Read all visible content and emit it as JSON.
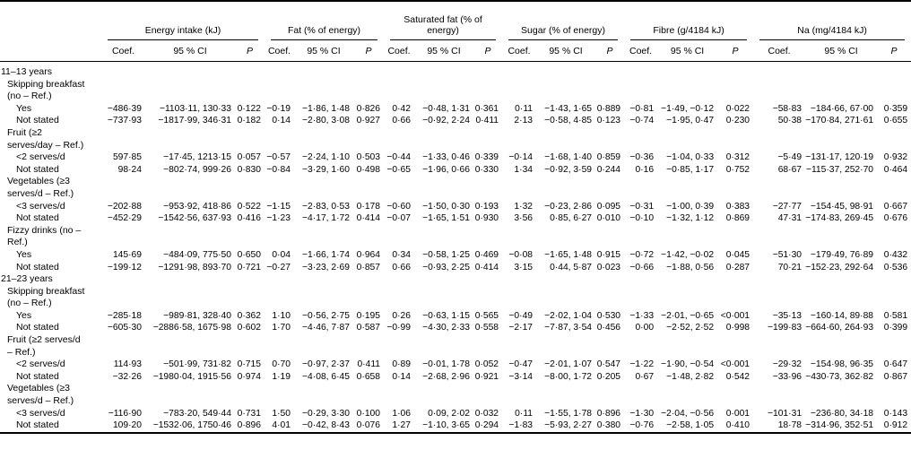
{
  "table": {
    "col_groups": [
      {
        "label": "Energy intake (kJ)"
      },
      {
        "label": "Fat (% of energy)"
      },
      {
        "label": "Saturated fat (% of energy)"
      },
      {
        "label": "Sugar (% of energy)"
      },
      {
        "label": "Fibre (g/4184 kJ)"
      },
      {
        "label": "Na (mg/4184 kJ)"
      }
    ],
    "sub_headers": {
      "coef": "Coef.",
      "ci": "95 % CI",
      "p": "P"
    },
    "rows": [
      {
        "label": "11–13 years",
        "indent": 0,
        "cells": null
      },
      {
        "label": "Skipping breakfast (no – Ref.)",
        "indent": 1,
        "cells": null
      },
      {
        "label": "Yes",
        "indent": 2,
        "cells": [
          "−486·39",
          "−1103·11, 130·33",
          "0·122",
          "−0·19",
          "−1·86, 1·48",
          "0·826",
          "0·42",
          "−0·48, 1·31",
          "0·361",
          "0·11",
          "−1·43, 1·65",
          "0·889",
          "−0·81",
          "−1·49, −0·12",
          "0·022",
          "−58·83",
          "−184·66, 67·00",
          "0·359"
        ]
      },
      {
        "label": "Not stated",
        "indent": 2,
        "cells": [
          "−737·93",
          "−1817·99, 346·31",
          "0·182",
          "0·14",
          "−2·80, 3·08",
          "0·927",
          "0·66",
          "−0·92, 2·24",
          "0·411",
          "2·13",
          "−0·58, 4·85",
          "0·123",
          "−0·74",
          "−1·95, 0·47",
          "0·230",
          "50·38",
          "−170·84, 271·61",
          "0·655"
        ]
      },
      {
        "label": "Fruit (≥2 serves/day – Ref.)",
        "indent": 1,
        "cells": null
      },
      {
        "label": "<2 serves/d",
        "indent": 2,
        "cells": [
          "597·85",
          "−17·45, 1213·15",
          "0·057",
          "−0·57",
          "−2·24, 1·10",
          "0·503",
          "−0·44",
          "−1·33, 0·46",
          "0·339",
          "−0·14",
          "−1·68, 1·40",
          "0·859",
          "−0·36",
          "−1·04, 0·33",
          "0·312",
          "−5·49",
          "−131·17, 120·19",
          "0·932"
        ]
      },
      {
        "label": "Not stated",
        "indent": 2,
        "cells": [
          "98·24",
          "−802·74, 999·26",
          "0·830",
          "−0·84",
          "−3·29, 1·60",
          "0·498",
          "−0·65",
          "−1·96, 0·66",
          "0·330",
          "1·34",
          "−0·92, 3·59",
          "0·244",
          "0·16",
          "−0·85, 1·17",
          "0·752",
          "68·67",
          "−115·37, 252·70",
          "0·464"
        ]
      },
      {
        "label": "Vegetables (≥3 serves/d – Ref.)",
        "indent": 1,
        "cells": null
      },
      {
        "label": "<3 serves/d",
        "indent": 2,
        "cells": [
          "−202·88",
          "−953·92, 418·86",
          "0·522",
          "−1·15",
          "−2·83, 0·53",
          "0·178",
          "−0·60",
          "−1·50, 0·30",
          "0·193",
          "1·32",
          "−0·23, 2·86",
          "0·095",
          "−0·31",
          "−1·00, 0·39",
          "0·383",
          "−27·77",
          "−154·45, 98·91",
          "0·667"
        ]
      },
      {
        "label": "Not stated",
        "indent": 2,
        "cells": [
          "−452·29",
          "−1542·56, 637·93",
          "0·416",
          "−1·23",
          "−4·17, 1·72",
          "0·414",
          "−0·07",
          "−1·65, 1·51",
          "0·930",
          "3·56",
          "0·85, 6·27",
          "0·010",
          "−0·10",
          "−1·32, 1·12",
          "0·869",
          "47·31",
          "−174·83, 269·45",
          "0·676"
        ]
      },
      {
        "label": "Fizzy drinks (no – Ref.)",
        "indent": 1,
        "cells": null
      },
      {
        "label": "Yes",
        "indent": 2,
        "cells": [
          "145·69",
          "−484·09, 775·50",
          "0·650",
          "0·04",
          "−1·66, 1·74",
          "0·964",
          "0·34",
          "−0·58, 1·25",
          "0·469",
          "−0·08",
          "−1·65, 1·48",
          "0·915",
          "−0·72",
          "−1·42, −0·02",
          "0·045",
          "−51·30",
          "−179·49, 76·89",
          "0·432"
        ]
      },
      {
        "label": "Not stated",
        "indent": 2,
        "cells": [
          "−199·12",
          "−1291·98, 893·70",
          "0·721",
          "−0·27",
          "−3·23, 2·69",
          "0·857",
          "0·66",
          "−0·93, 2·25",
          "0·414",
          "3·15",
          "0·44, 5·87",
          "0·023",
          "−0·66",
          "−1·88, 0·56",
          "0·287",
          "70·21",
          "−152·23, 292·64",
          "0·536"
        ]
      },
      {
        "label": "21–23 years",
        "indent": 0,
        "cells": null
      },
      {
        "label": "Skipping breakfast (no – Ref.)",
        "indent": 1,
        "cells": null
      },
      {
        "label": "Yes",
        "indent": 2,
        "cells": [
          "−285·18",
          "−989·81, 328·40",
          "0·362",
          "1·10",
          "−0·56, 2·75",
          "0·195",
          "0·26",
          "−0·63, 1·15",
          "0·565",
          "−0·49",
          "−2·02, 1·04",
          "0·530",
          "−1·33",
          "−2·01, −0·65",
          "<0·001",
          "−35·13",
          "−160·14, 89·88",
          "0·581"
        ]
      },
      {
        "label": "Not stated",
        "indent": 2,
        "cells": [
          "−605·30",
          "−2886·58, 1675·98",
          "0·602",
          "1·70",
          "−4·46, 7·87",
          "0·587",
          "−0·99",
          "−4·30, 2·33",
          "0·558",
          "−2·17",
          "−7·87, 3·54",
          "0·456",
          "0·00",
          "−2·52, 2·52",
          "0·998",
          "−199·83",
          "−664·60, 264·93",
          "0·399"
        ]
      },
      {
        "label": "Fruit (≥2 serves/d – Ref.)",
        "indent": 1,
        "cells": null
      },
      {
        "label": "<2 serves/d",
        "indent": 2,
        "cells": [
          "114·93",
          "−501·99, 731·82",
          "0·715",
          "0·70",
          "−0·97, 2·37",
          "0·411",
          "0·89",
          "−0·01, 1·78",
          "0·052",
          "−0·47",
          "−2·01, 1·07",
          "0·547",
          "−1·22",
          "−1·90, −0·54",
          "<0·001",
          "−29·32",
          "−154·98, 96·35",
          "0·647"
        ]
      },
      {
        "label": "Not stated",
        "indent": 2,
        "cells": [
          "−32·26",
          "−1980·04, 1915·56",
          "0·974",
          "1·19",
          "−4·08, 6·45",
          "0·658",
          "0·14",
          "−2·68, 2·96",
          "0·921",
          "−3·14",
          "−8·00, 1·72",
          "0·205",
          "0·67",
          "−1·48, 2·82",
          "0·542",
          "−33·96",
          "−430·73, 362·82",
          "0·867"
        ]
      },
      {
        "label": "Vegetables (≥3 serves/d – Ref.)",
        "indent": 1,
        "cells": null
      },
      {
        "label": "<3 serves/d",
        "indent": 2,
        "cells": [
          "−116·90",
          "−783·20, 549·44",
          "0·731",
          "1·50",
          "−0·29, 3·30",
          "0·100",
          "1·06",
          "0·09, 2·02",
          "0·032",
          "0·11",
          "−1·55, 1·78",
          "0·896",
          "−1·30",
          "−2·04, −0·56",
          "0·001",
          "−101·31",
          "−236·80, 34·18",
          "0·143"
        ]
      },
      {
        "label": "Not stated",
        "indent": 2,
        "cells": [
          "109·20",
          "−1532·06, 1750·46",
          "0·896",
          "4·01",
          "−0·42, 8·43",
          "0·076",
          "1·27",
          "−1·10, 3·65",
          "0·294",
          "−1·83",
          "−5·93, 2·27",
          "0·380",
          "−0·76",
          "−2·58, 1·05",
          "0·410",
          "18·78",
          "−314·96, 352·51",
          "0·912"
        ]
      }
    ]
  }
}
